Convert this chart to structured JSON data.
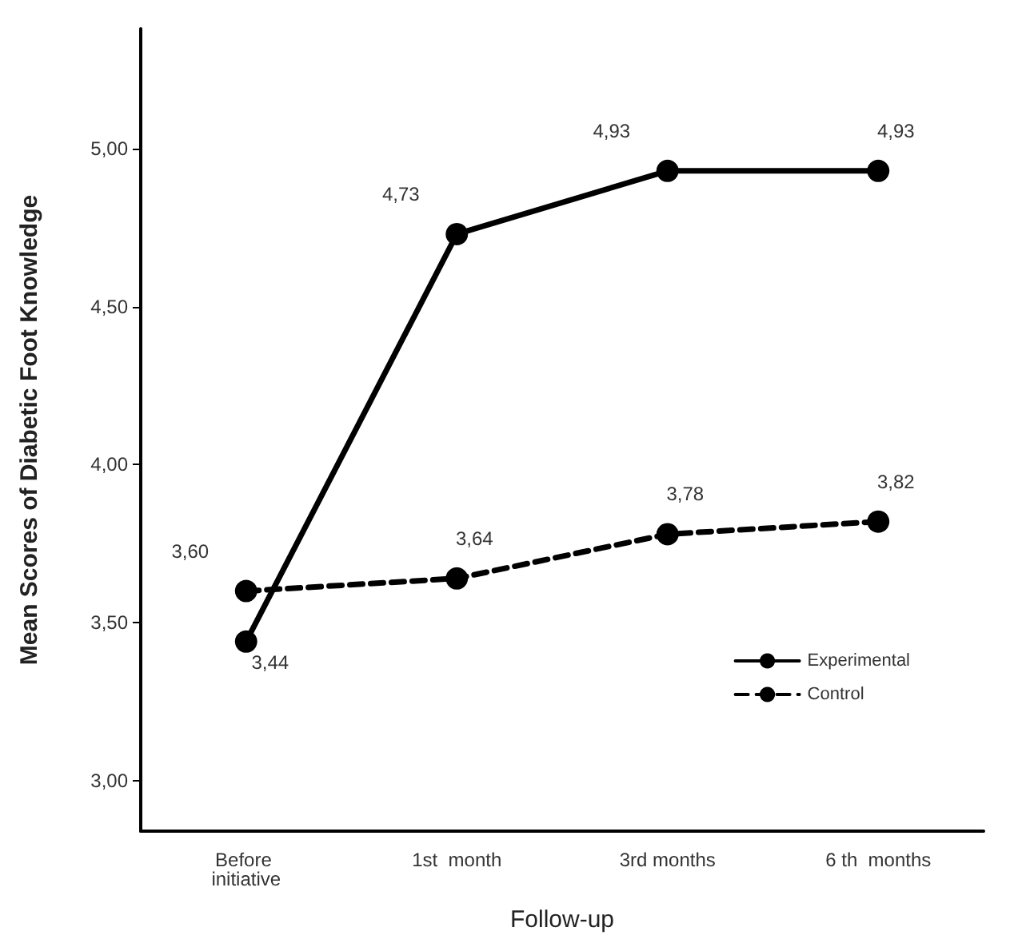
{
  "chart_data": {
    "type": "line",
    "xlabel": "Follow-up",
    "ylabel": "Mean Scores of Diabetic Foot Knowledge",
    "categories": [
      "Before initiative",
      "1st  month",
      "3rd months",
      "6 th  months"
    ],
    "series": [
      {
        "name": "Experimental",
        "color": "#000000",
        "line_style": "solid",
        "values": [
          3.44,
          4.73,
          4.93,
          4.93
        ],
        "value_labels": [
          "3,44",
          "4,73",
          "4,93",
          "4,93"
        ]
      },
      {
        "name": "Control",
        "color": "#000000",
        "line_style": "dashed",
        "values": [
          3.6,
          3.64,
          3.78,
          3.82
        ],
        "value_labels": [
          "3,60",
          "3,64",
          "3,78",
          "3,82"
        ]
      }
    ],
    "ylim": [
      2.84,
      5.38
    ],
    "yticks": [
      {
        "value": 3,
        "label": "3,00"
      },
      {
        "value": 3.5,
        "label": "3,50"
      },
      {
        "value": 4,
        "label": "4,00"
      },
      {
        "value": 4.5,
        "label": "4,50"
      },
      {
        "value": 5,
        "label": "5,00"
      }
    ],
    "marker": "circle",
    "grid": false,
    "legend": "bottom right"
  }
}
